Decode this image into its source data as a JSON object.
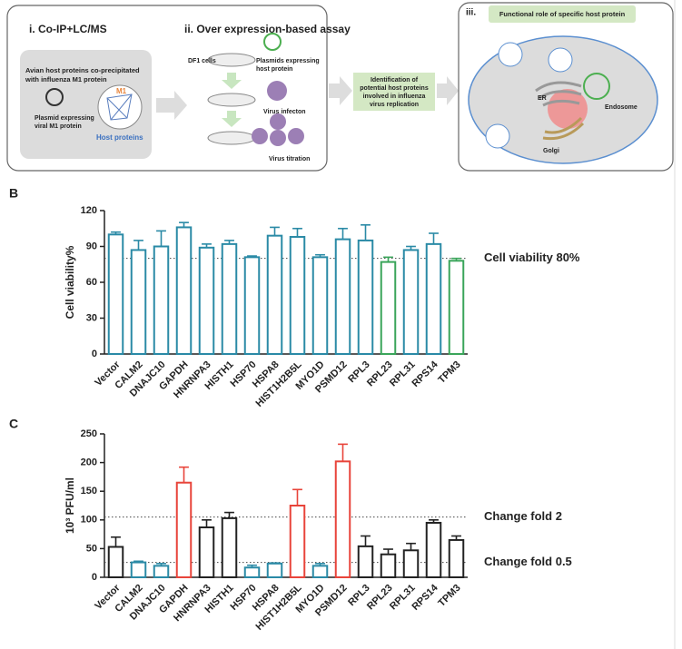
{
  "diagram": {
    "panel_i": {
      "title": "i. Co-IP+LC/MS",
      "description": [
        "Avian host proteins co-precipitated",
        "with influenza M1 protein"
      ],
      "plasmid": [
        "Plasmid expressing",
        "viral M1 protein"
      ],
      "bait": "M1",
      "network": "Host proteins"
    },
    "panel_ii": {
      "title": "ii. Over expression-based assay",
      "cells": "DF1 cells",
      "plasmid": [
        "Plasmids expressing",
        "host protein"
      ],
      "infection": "Virus infecton",
      "titration": "Virus titration"
    },
    "result": [
      "Identification of",
      "potential host proteins",
      "involved in influenza",
      "virus replication"
    ],
    "panel_iii": {
      "title": "iii.",
      "heading": "Functional role of specific host protein",
      "endosome": "Endosome",
      "er": "ER",
      "golgi": "Golgi"
    }
  },
  "chart_data": [
    {
      "type": "bar",
      "panel": "B",
      "ylabel": "Cell viability%",
      "categories": [
        "Vector",
        "CALM2",
        "DNAJC10",
        "GAPDH",
        "HNRNPA3",
        "HISTH1",
        "HSP70",
        "HSPA8",
        "HIST1H2B5L",
        "MYO1D",
        "PSMD12",
        "RPL3",
        "RPL23",
        "RPL31",
        "RPS14",
        "TPM3"
      ],
      "values": [
        100,
        87,
        90,
        106,
        89,
        92,
        81,
        99,
        98,
        81,
        96,
        95,
        77,
        87,
        92,
        78
      ],
      "errors": [
        2,
        8,
        13,
        4,
        3,
        3,
        1,
        7,
        7,
        2,
        9,
        13,
        4,
        3,
        9,
        2
      ],
      "colors": [
        "#2a8aa6",
        "#2a8aa6",
        "#2a8aa6",
        "#2a8aa6",
        "#2a8aa6",
        "#2a8aa6",
        "#2a8aa6",
        "#2a8aa6",
        "#2a8aa6",
        "#2a8aa6",
        "#2a8aa6",
        "#2a8aa6",
        "#3aa55a",
        "#2a8aa6",
        "#2a8aa6",
        "#3aa55a"
      ],
      "ylim": [
        0,
        120
      ],
      "yticks": [
        0,
        30,
        60,
        90,
        120
      ],
      "reference_lines": [
        {
          "value": 80,
          "label": "Cell viability 80%"
        }
      ]
    },
    {
      "type": "bar",
      "panel": "C",
      "ylabel": "10³ PFU/ml",
      "categories": [
        "Vector",
        "CALM2",
        "DNAJC10",
        "GAPDH",
        "HNRNPA3",
        "HISTH1",
        "HSP70",
        "HSPA8",
        "HIST1H2B5L",
        "MYO1D",
        "PSMD12",
        "RPL3",
        "RPL23",
        "RPL31",
        "RPS14",
        "TPM3"
      ],
      "values": [
        53,
        26,
        20,
        165,
        87,
        103,
        17,
        24,
        125,
        20,
        202,
        54,
        40,
        47,
        95,
        65
      ],
      "errors": [
        17,
        2,
        4,
        27,
        13,
        10,
        4,
        1,
        28,
        4,
        30,
        18,
        9,
        12,
        5,
        7
      ],
      "colors": [
        "#222222",
        "#2a8aa6",
        "#2a8aa6",
        "#e8443a",
        "#222222",
        "#222222",
        "#2a8aa6",
        "#2a8aa6",
        "#e8443a",
        "#2a8aa6",
        "#e8443a",
        "#222222",
        "#222222",
        "#222222",
        "#222222",
        "#222222"
      ],
      "ylim": [
        0,
        250
      ],
      "yticks": [
        0,
        50,
        100,
        150,
        200,
        250
      ],
      "reference_lines": [
        {
          "value": 105,
          "label": "Change fold 2"
        },
        {
          "value": 26,
          "label": "Change fold 0.5"
        }
      ]
    }
  ]
}
